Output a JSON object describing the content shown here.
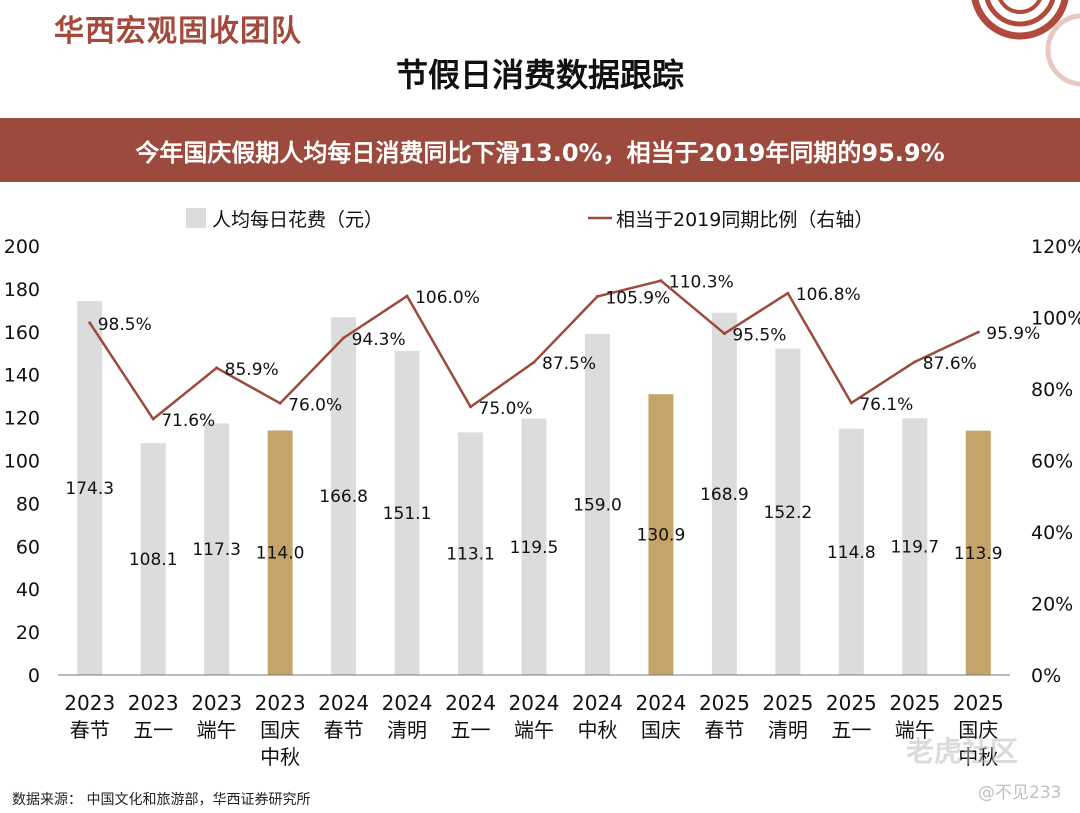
{
  "header": {
    "brand": "华西宏观固收团队",
    "title": "节假日消费数据跟踪",
    "banner": "今年国庆假期人均每日消费同比下滑13.0%，相当于2019年同期的95.9%"
  },
  "footer": {
    "source": "数据来源： 中国文化和旅游部，华西证券研究所"
  },
  "watermark": {
    "site": "老虎社区",
    "user": "@不见233"
  },
  "colors": {
    "bar": "#dcdcdc",
    "bar_highlight": "#c4a46b",
    "line": "#9c4a3d",
    "banner": "#9c4a3d",
    "brand": "#a24a3c"
  },
  "chart_data": {
    "type": "bar",
    "categories": [
      [
        "2023",
        "春节"
      ],
      [
        "2023",
        "五一"
      ],
      [
        "2023",
        "端午"
      ],
      [
        "2023",
        "国庆",
        "中秋"
      ],
      [
        "2024",
        "春节"
      ],
      [
        "2024",
        "清明"
      ],
      [
        "2024",
        "五一"
      ],
      [
        "2024",
        "端午"
      ],
      [
        "2024",
        "中秋"
      ],
      [
        "2024",
        "国庆"
      ],
      [
        "2025",
        "春节"
      ],
      [
        "2025",
        "清明"
      ],
      [
        "2025",
        "五一"
      ],
      [
        "2025",
        "端午"
      ],
      [
        "2025",
        "国庆",
        "中秋"
      ]
    ],
    "series": [
      {
        "name": "人均每日花费（元）",
        "type": "bar",
        "axis": "left",
        "values": [
          174.3,
          108.1,
          117.3,
          114.0,
          166.8,
          151.1,
          113.1,
          119.5,
          159.0,
          130.9,
          168.9,
          152.2,
          114.8,
          119.7,
          113.9
        ],
        "labels": [
          "174.3",
          "108.1",
          "117.3",
          "114.0",
          "166.8",
          "151.1",
          "113.1",
          "119.5",
          "159.0",
          "130.9",
          "168.9",
          "152.2",
          "114.8",
          "119.7",
          "113.9"
        ],
        "highlight": [
          false,
          false,
          false,
          true,
          false,
          false,
          false,
          false,
          false,
          true,
          false,
          false,
          false,
          false,
          true
        ]
      },
      {
        "name": "相当于2019同期比例（右轴）",
        "type": "line",
        "axis": "right",
        "values": [
          98.5,
          71.6,
          85.9,
          76.0,
          94.3,
          106.0,
          75.0,
          87.5,
          105.9,
          110.3,
          95.5,
          106.8,
          76.1,
          87.6,
          95.9
        ],
        "labels": [
          "98.5%",
          "71.6%",
          "85.9%",
          "76.0%",
          "94.3%",
          "106.0%",
          "75.0%",
          "87.5%",
          "105.9%",
          "110.3%",
          "95.5%",
          "106.8%",
          "76.1%",
          "87.6%",
          "95.9%"
        ]
      }
    ],
    "ylim": [
      0,
      200
    ],
    "y_ticks": [
      "0",
      "20",
      "40",
      "60",
      "80",
      "100",
      "120",
      "140",
      "160",
      "180",
      "200"
    ],
    "y2lim": [
      0,
      120
    ],
    "y2_ticks": [
      "0%",
      "20%",
      "40%",
      "60%",
      "80%",
      "100%",
      "120%"
    ],
    "grid": false,
    "legend": "top"
  }
}
